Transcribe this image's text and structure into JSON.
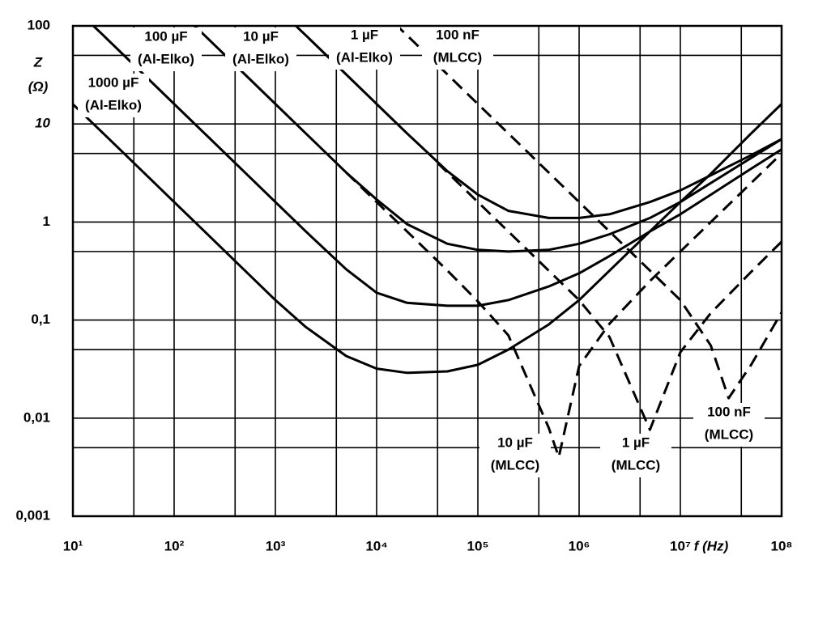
{
  "chart_data": {
    "type": "line",
    "x_label": "f (Hz)",
    "y_label": [
      "Z",
      "(Ω)"
    ],
    "xscale": "log",
    "yscale": "log",
    "grid": true,
    "xlim": [
      10,
      100000000
    ],
    "ylim": [
      0.001,
      100
    ],
    "xticks": [
      {
        "value": 10,
        "label": "10¹"
      },
      {
        "value": 100,
        "label": "10²"
      },
      {
        "value": 1000,
        "label": "10³"
      },
      {
        "value": 10000,
        "label": "10⁴"
      },
      {
        "value": 100000,
        "label": "10⁵"
      },
      {
        "value": 1000000,
        "label": "10⁶"
      },
      {
        "value": 10000000,
        "label": "10⁷"
      },
      {
        "value": 100000000,
        "label": "10⁸"
      }
    ],
    "yticks": [
      {
        "value": 0.001,
        "label": "0,001"
      },
      {
        "value": 0.01,
        "label": "0,01"
      },
      {
        "value": 0.1,
        "label": "0,1"
      },
      1,
      10,
      100
    ],
    "x_minor_grid": [
      40,
      400,
      4000,
      40000,
      400000,
      4000000,
      40000000
    ],
    "y_minor_grid": [
      0.005,
      0.05,
      0.5,
      5,
      50
    ],
    "series": [
      {
        "labels": [
          [
            "1000 µF",
            "(Al-Elko)"
          ]
        ],
        "color": "#000000",
        "dashed": false,
        "x": [
          10,
          20,
          50,
          100,
          200,
          500,
          1000,
          2000,
          5000,
          10000,
          20000,
          50000,
          100000,
          200000,
          500000,
          1000000,
          2000000,
          5000000,
          10000000,
          20000000,
          50000000,
          100000000
        ],
        "values": [
          15.9,
          8,
          3.2,
          1.6,
          0.8,
          0.32,
          0.16,
          0.085,
          0.043,
          0.032,
          0.029,
          0.03,
          0.035,
          0.05,
          0.09,
          0.16,
          0.32,
          0.8,
          1.6,
          3.1,
          8,
          16
        ]
      },
      {
        "labels": [
          [
            "100 µF",
            "(Al-Elko)"
          ]
        ],
        "color": "#000000",
        "dashed": false,
        "x": [
          15,
          20,
          50,
          100,
          200,
          500,
          1000,
          2000,
          5000,
          10000,
          20000,
          50000,
          100000,
          200000,
          500000,
          1000000,
          2000000,
          5000000,
          10000000,
          20000000,
          50000000,
          100000000
        ],
        "values": [
          106,
          80,
          32,
          16,
          8,
          3.2,
          1.6,
          0.8,
          0.33,
          0.19,
          0.15,
          0.14,
          0.14,
          0.16,
          0.22,
          0.3,
          0.45,
          0.8,
          1.2,
          1.9,
          3.5,
          5.5
        ]
      },
      {
        "labels": [
          [
            "10 µF",
            "(Al-Elko)"
          ]
        ],
        "color": "#000000",
        "dashed": false,
        "x": [
          150,
          200,
          500,
          1000,
          2000,
          5000,
          10000,
          20000,
          50000,
          100000,
          200000,
          500000,
          1000000,
          2000000,
          5000000,
          10000000,
          20000000,
          50000000,
          100000000
        ],
        "values": [
          106,
          80,
          32,
          16,
          8,
          3.2,
          1.7,
          0.95,
          0.6,
          0.52,
          0.5,
          0.52,
          0.6,
          0.75,
          1.1,
          1.6,
          2.5,
          4.5,
          7
        ]
      },
      {
        "labels": [
          [
            "1 µF",
            "(Al-Elko)"
          ]
        ],
        "color": "#000000",
        "dashed": false,
        "x": [
          1500,
          2000,
          5000,
          10000,
          20000,
          50000,
          100000,
          200000,
          500000,
          1000000,
          2000000,
          5000000,
          10000000,
          20000000,
          50000000,
          100000000
        ],
        "values": [
          106,
          80,
          32,
          16,
          8,
          3.3,
          1.9,
          1.3,
          1.1,
          1.1,
          1.2,
          1.6,
          2.1,
          3,
          4.8,
          7
        ]
      },
      {
        "labels": [
          [
            "10 µF",
            "(MLCC)"
          ]
        ],
        "color": "#000000",
        "dashed": true,
        "x": [
          5000,
          10000,
          20000,
          50000,
          100000,
          200000,
          500000,
          630000,
          1000000,
          2000000,
          5000000,
          10000000,
          20000000,
          50000000,
          100000000
        ],
        "values": [
          3.2,
          1.6,
          0.8,
          0.32,
          0.155,
          0.07,
          0.008,
          0.004,
          0.034,
          0.092,
          0.25,
          0.5,
          1,
          2.5,
          5
        ]
      },
      {
        "labels": [
          [
            "1 µF",
            "(MLCC)"
          ]
        ],
        "color": "#000000",
        "dashed": true,
        "x": [
          40000,
          50000,
          100000,
          200000,
          500000,
          1000000,
          2000000,
          5000000,
          10000000,
          20000000,
          50000000,
          100000000
        ],
        "values": [
          4,
          3.2,
          1.6,
          0.8,
          0.32,
          0.16,
          0.067,
          0.0076,
          0.047,
          0.118,
          0.31,
          0.63
        ]
      },
      {
        "labels": [
          [
            "100 nF",
            "(MLCC)"
          ],
          [
            "100 nF",
            "(MLCC)"
          ]
        ],
        "color": "#000000",
        "dashed": true,
        "x": [
          15000,
          20000,
          50000,
          100000,
          200000,
          500000,
          1000000,
          2000000,
          5000000,
          10000000,
          20000000,
          30000000,
          50000000,
          100000000
        ],
        "values": [
          106,
          80,
          32,
          16,
          8,
          3.2,
          1.6,
          0.8,
          0.32,
          0.16,
          0.055,
          0.016,
          0.035,
          0.12
        ]
      }
    ]
  }
}
